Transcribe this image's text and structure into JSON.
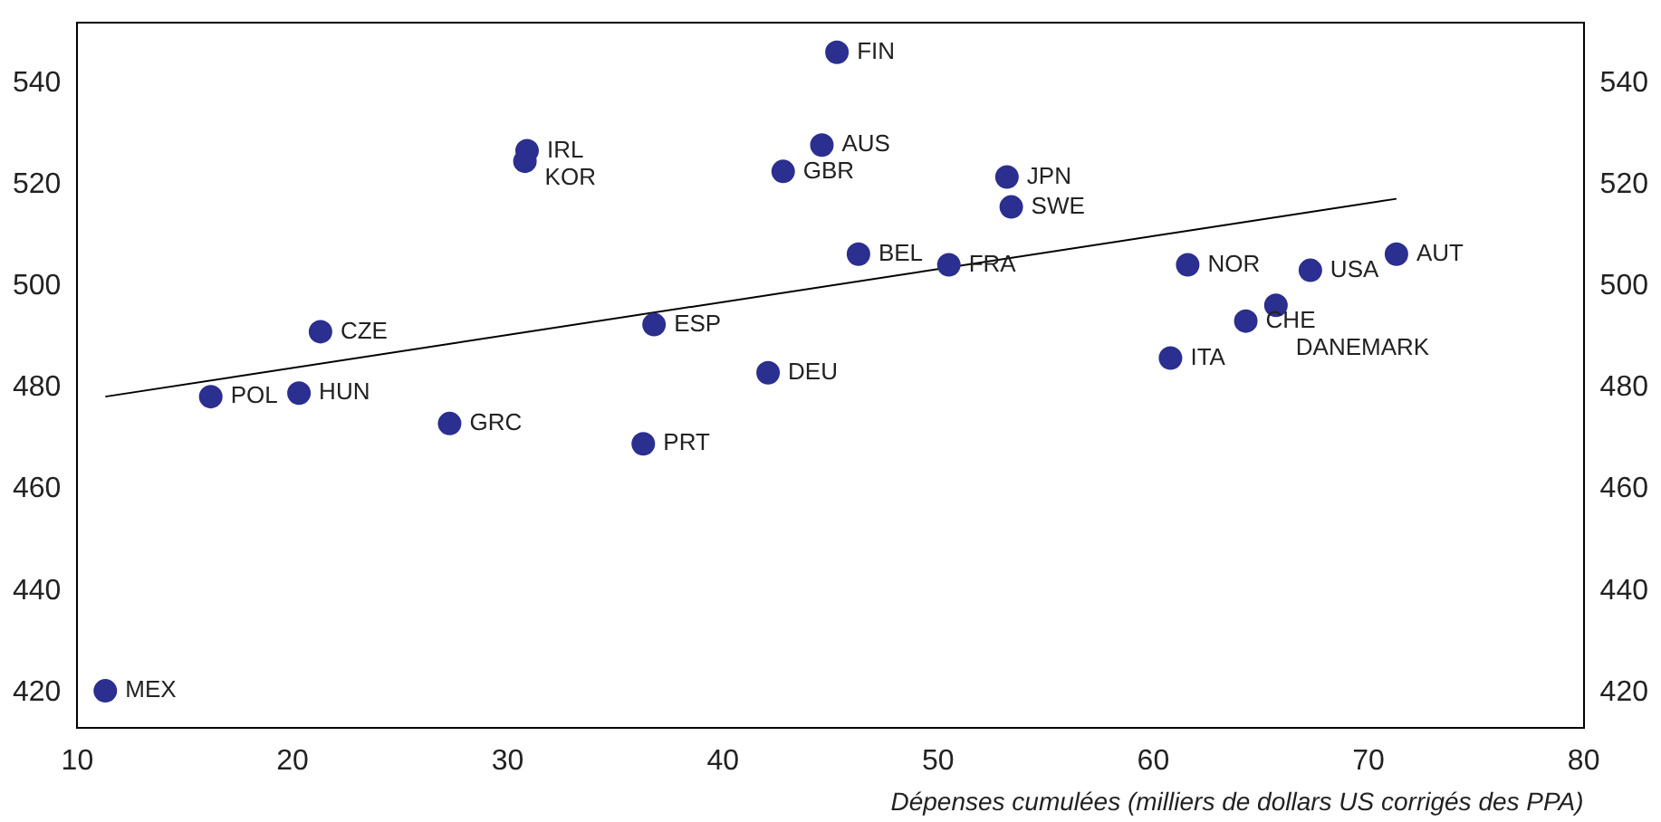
{
  "chart_data": {
    "type": "scatter",
    "xlabel": "Dépenses cumulées (milliers de dollars US corrigés des PPA)",
    "xlim": [
      10,
      80
    ],
    "xticks": [
      10,
      20,
      30,
      40,
      50,
      60,
      70,
      80
    ],
    "ylim": [
      413,
      552
    ],
    "yticks": [
      420,
      440,
      460,
      480,
      500,
      520,
      540
    ],
    "y2lim": [
      413,
      552
    ],
    "y2ticks": [
      420,
      440,
      460,
      480,
      500,
      520,
      540
    ],
    "grid": false,
    "legend": false,
    "series": [
      {
        "marker": "circle",
        "color": "#2b2f8f",
        "x": [
          11.3,
          16.2,
          20.3,
          21.3,
          27.3,
          30.9,
          30.8,
          36.8,
          36.3,
          42.1,
          42.8,
          44.6,
          45.3,
          46.3,
          50.5,
          53.2,
          53.4,
          60.8,
          61.6,
          64.3,
          65.7,
          67.3,
          71.3
        ],
        "values": [
          420.3,
          478.3,
          479,
          491.1,
          473,
          526.8,
          524.7,
          492.5,
          469,
          483,
          522.7,
          527.9,
          546.2,
          506.4,
          504.3,
          521.6,
          515.7,
          485.9,
          504.3,
          493.2,
          496.3,
          503.2,
          506.4
        ],
        "value_labels": [
          "MEX",
          "POL",
          "HUN",
          "CZE",
          "GRC",
          "IRL",
          "KOR",
          "ESP",
          "PRT",
          "DEU",
          "GBR",
          "AUS",
          "FIN",
          "BEL",
          "FRA",
          "JPN",
          "SWE",
          "ITA",
          "NOR",
          "CHE",
          "DANEMARK",
          "USA",
          "AUT"
        ]
      },
      {
        "type": "line",
        "marker": "none",
        "color": "#000000",
        "x": [
          11.3,
          71.3
        ],
        "values": [
          478.3,
          517.3
        ]
      }
    ]
  }
}
